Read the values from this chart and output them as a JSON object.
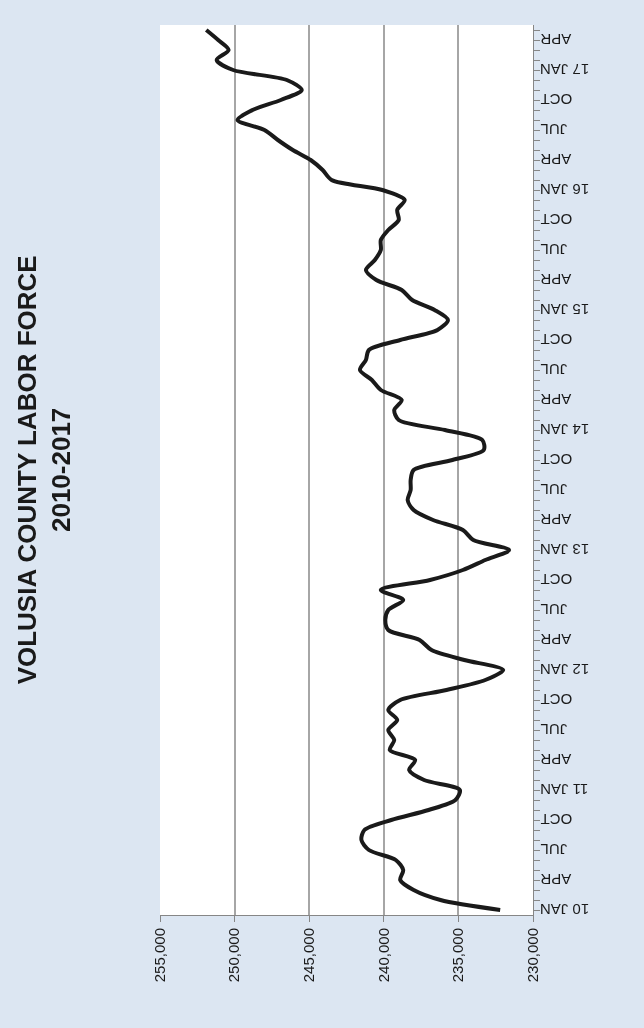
{
  "chart_data": {
    "type": "line",
    "title": "VOLUSIA COUNTY LABOR FORCE\n2010-2017",
    "orientation": "horizontal",
    "categories": [
      null,
      "APR",
      null,
      null,
      "17 JAN",
      null,
      null,
      "OCT",
      null,
      null,
      "JUL",
      null,
      null,
      "APR",
      null,
      null,
      "16 JAN",
      null,
      null,
      "OCT",
      null,
      null,
      "JUL",
      null,
      null,
      "APR",
      null,
      null,
      "15 JAN",
      null,
      null,
      "OCT",
      null,
      null,
      "JUL",
      null,
      null,
      "APR",
      null,
      null,
      "14 JAN",
      null,
      null,
      "OCT",
      null,
      null,
      "JUL",
      null,
      null,
      "APR",
      null,
      null,
      "13 JAN",
      null,
      null,
      "OCT",
      null,
      null,
      "JUL",
      null,
      null,
      "APR",
      null,
      null,
      "12 JAN",
      null,
      null,
      "OCT",
      null,
      null,
      "JUL",
      null,
      null,
      "APR",
      null,
      null,
      "11 JAN",
      null,
      null,
      "OCT",
      null,
      null,
      "JUL",
      null,
      null,
      "APR",
      null,
      null,
      "10 JAN"
    ],
    "series": [
      {
        "color": "#1a1a1a",
        "values": [
          251900,
          251100,
          250400,
          251200,
          250100,
          246500,
          245500,
          246900,
          248800,
          249800,
          248000,
          247100,
          246100,
          244900,
          244100,
          243500,
          240100,
          238600,
          239100,
          239000,
          239700,
          240200,
          240200,
          240600,
          241200,
          240500,
          238800,
          238100,
          236600,
          235700,
          236400,
          238900,
          241000,
          241200,
          241600,
          240800,
          240200,
          238800,
          239300,
          239000,
          235900,
          233400,
          233300,
          235400,
          238000,
          238200,
          238200,
          238400,
          238000,
          236700,
          234700,
          234000,
          231600,
          233200,
          234700,
          236900,
          240200,
          238700,
          239700,
          239900,
          239700,
          237600,
          236800,
          234600,
          232000,
          233200,
          235800,
          238900,
          239700,
          239100,
          239700,
          239300,
          239600,
          237900,
          238300,
          237300,
          234900,
          235200,
          237000,
          239500,
          241300,
          241500,
          241000,
          239200,
          238700,
          238900,
          238000,
          236200,
          232200
        ]
      }
    ],
    "xlim": [
      255000,
      230000
    ],
    "xticks": [
      {
        "value": 255000,
        "label": "255,000"
      },
      {
        "value": 250000,
        "label": "250,000"
      },
      {
        "value": 245000,
        "label": "245,000"
      },
      {
        "value": 240000,
        "label": "240,000"
      },
      {
        "value": 235000,
        "label": "235,000"
      },
      {
        "value": 230000,
        "label": "230,000"
      }
    ],
    "grid": "x",
    "marker": "none",
    "line_style": "solid"
  }
}
